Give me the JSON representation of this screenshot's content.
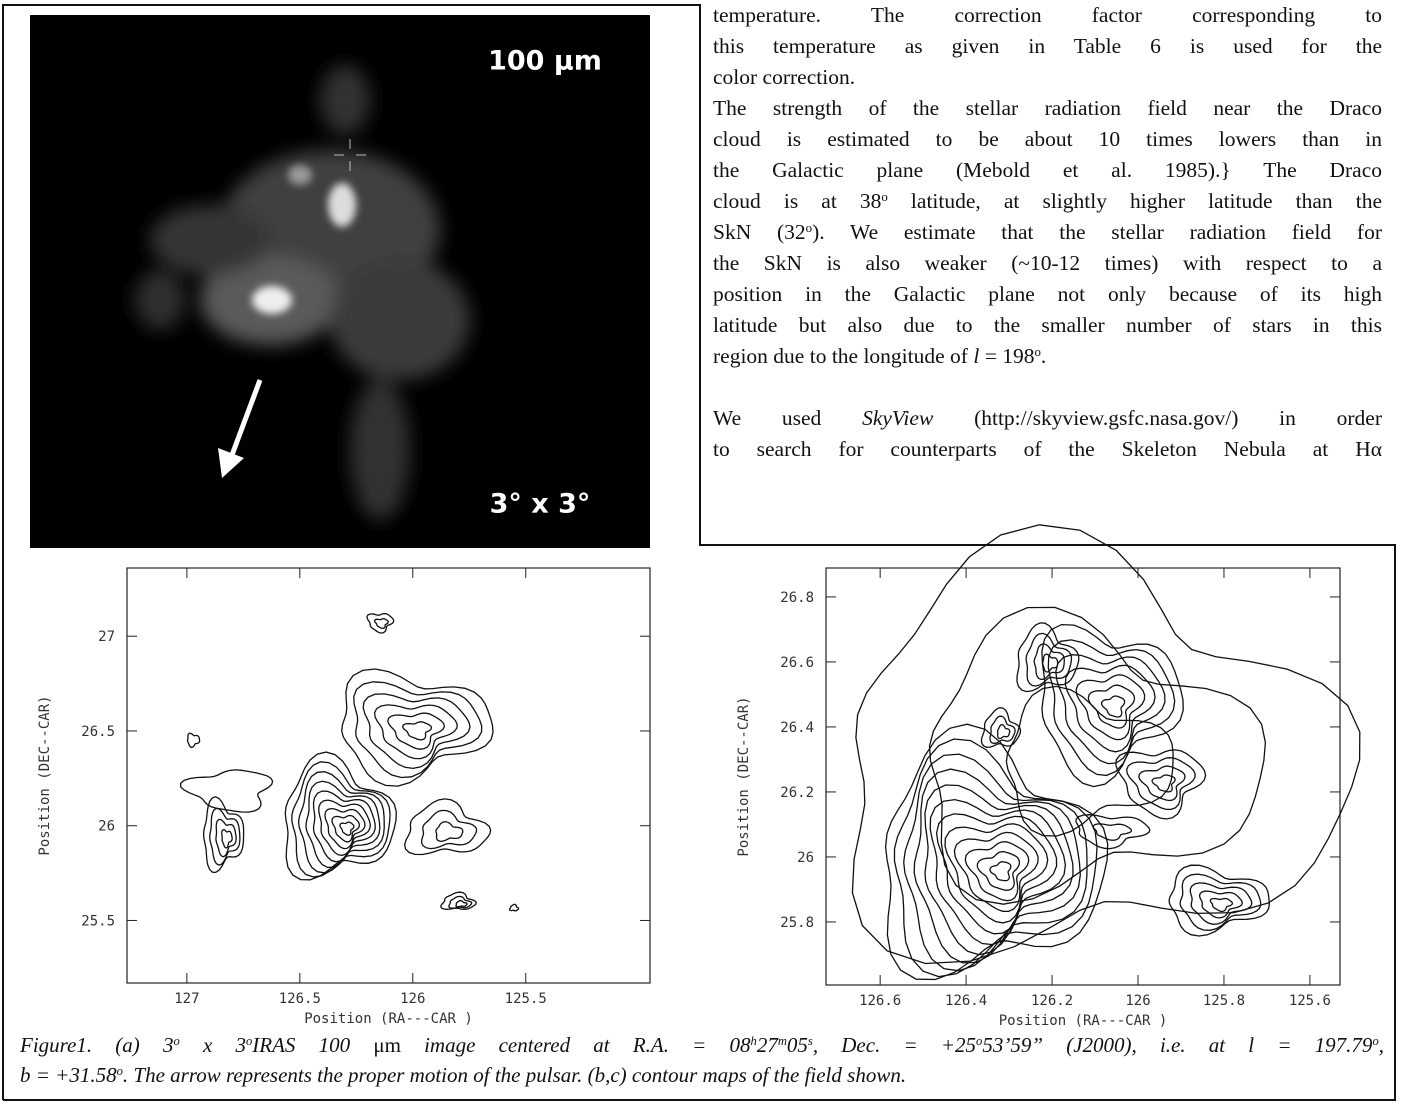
{
  "body": {
    "paragraphs": [
      {
        "lines": [
          [
            "temperature. The correction factor corresponding to"
          ],
          [
            "this temperature as given in Table 6 is used for the"
          ],
          [
            "color correction."
          ]
        ]
      },
      {
        "lines": [
          [
            "The strength of the stellar radiation field near the Draco"
          ],
          [
            "cloud is estimated to be about 10 times lowers than in"
          ],
          [
            "the Galactic plane (Mebold et al. 1985).} The Draco"
          ],
          [
            "cloud is at 38",
            {
              "text": "o",
              "style": "sup"
            },
            " latitude, at slightly higher latitude than the"
          ],
          [
            "SkN (32",
            {
              "text": "o",
              "style": "sup"
            },
            "). We estimate that the stellar radiation field for"
          ],
          [
            "the SkN is also weaker (~10-12 times) with respect to a"
          ],
          [
            "position in the Galactic plane not only because of its high"
          ],
          [
            "latitude but also due to the smaller number of stars in this"
          ],
          [
            "region due to the longitude of ",
            {
              "text": "l",
              "style": "italic"
            },
            " = 198",
            {
              "text": "o",
              "style": "sup"
            },
            "."
          ]
        ]
      },
      {
        "lines": [
          [
            "We used ",
            {
              "text": "SkyView",
              "style": "italic"
            },
            " (http://skyview.gsfc.nasa.gov/) in order"
          ],
          [
            "to search for counterparts of the Skeleton Nebula at Hα"
          ]
        ]
      }
    ]
  },
  "image": {
    "wavelength_label": "100 μm",
    "size_label": "3° x 3°"
  },
  "figures": [
    {
      "xlabel": "Position (RA---CAR )",
      "ylabel": "Position (DEC--CAR)",
      "xlim": [
        127.265,
        124.95
      ],
      "ylim": [
        25.17,
        27.36
      ],
      "xticks": [
        127,
        126.5,
        126,
        125.5
      ],
      "yticks": [
        25.5,
        26,
        26.5,
        27
      ]
    },
    {
      "xlabel": "Position (RA---CAR )",
      "ylabel": "Position (DEC--CAR)",
      "xlim": [
        126.726,
        125.53
      ],
      "ylim": [
        25.606,
        26.889
      ],
      "xticks": [
        126.6,
        126.4,
        126.2,
        126,
        125.8,
        125.6
      ],
      "yticks": [
        25.8,
        26,
        26.2,
        26.4,
        26.6,
        26.8
      ]
    }
  ],
  "caption": {
    "lines": [
      [
        "Figure1. (a) 3",
        {
          "text": "o",
          "style": "sup"
        },
        " x 3",
        {
          "text": "o",
          "style": "sup"
        },
        "IRAS 100 ",
        {
          "text": "μm",
          "style": "upright"
        },
        " image centered at R.A. = 08",
        {
          "text": "h",
          "style": "sup"
        },
        "27",
        {
          "text": "m",
          "style": "sup"
        },
        "05",
        {
          "text": "s",
          "style": "sup"
        },
        ", Dec. = +25",
        {
          "text": "o",
          "style": "sup"
        },
        "53’59” (J2000), i.e. at l = 197.79",
        {
          "text": "o",
          "style": "sup"
        },
        ","
      ],
      [
        "b = +31.58",
        {
          "text": "o",
          "style": "sup"
        },
        ". The arrow represents the proper motion of the pulsar. (b,c) contour maps of the field shown."
      ]
    ]
  }
}
